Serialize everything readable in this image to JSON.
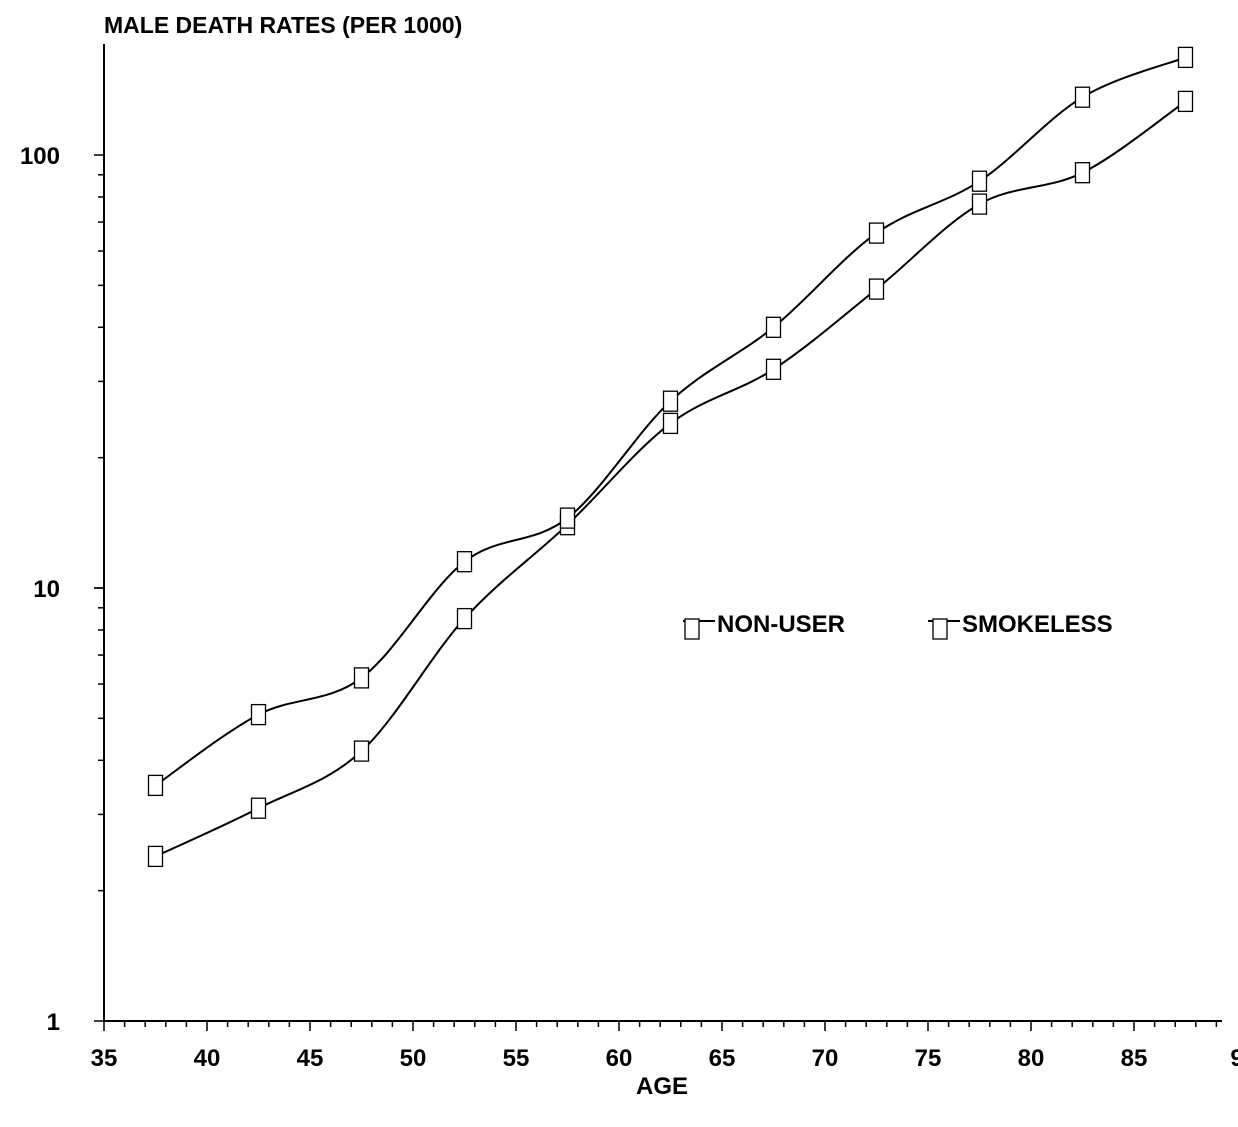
{
  "chart_data": {
    "type": "line",
    "title": "MALE DEATH RATES (PER 1000)",
    "xlabel": "AGE",
    "ylabel": "",
    "yscale": "log",
    "xlim": [
      35,
      90
    ],
    "ylim": [
      1,
      200
    ],
    "x_ticks": [
      "35",
      "40",
      "45",
      "50",
      "55",
      "60",
      "65",
      "70",
      "75",
      "80",
      "85",
      "9"
    ],
    "y_ticks": [
      "1",
      "10",
      "100"
    ],
    "legend_placement": "center-right",
    "series": [
      {
        "name": "NON-USER",
        "color": "#000000",
        "x": [
          37.5,
          42.5,
          47.5,
          52.5,
          57.5,
          62.5,
          67.5,
          72.5,
          77.5,
          82.5,
          87.5
        ],
        "values": [
          2.4,
          3.1,
          4.2,
          8.5,
          14.0,
          24.0,
          32.0,
          49.0,
          77.0,
          91.0,
          133.0
        ]
      },
      {
        "name": "SMOKELESS",
        "color": "#000000",
        "x": [
          37.5,
          42.5,
          47.5,
          52.5,
          57.5,
          62.5,
          67.5,
          72.5,
          77.5,
          82.5,
          87.5
        ],
        "values": [
          3.5,
          5.1,
          6.2,
          11.5,
          14.5,
          27.0,
          40.0,
          66.0,
          87.0,
          136.0,
          168.0
        ]
      }
    ]
  }
}
